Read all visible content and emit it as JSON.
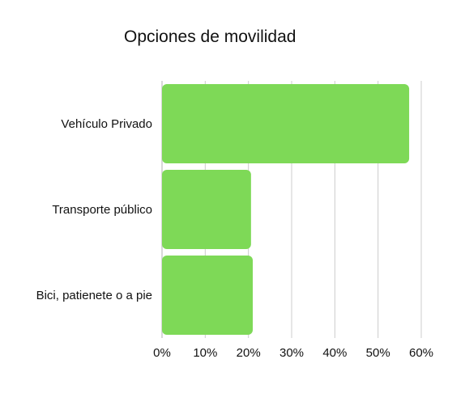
{
  "chart_data": {
    "type": "bar",
    "orientation": "horizontal",
    "title": "Opciones de movilidad",
    "categories": [
      "Vehículo Privado",
      "Transporte público",
      "Bici, patienete o a pie"
    ],
    "values": [
      57.2,
      20.6,
      21.0
    ],
    "x_ticks": [
      "0%",
      "10%",
      "20%",
      "30%",
      "40%",
      "50%",
      "60%"
    ],
    "xlim": [
      0,
      60
    ],
    "grid": true,
    "bar_color": "#7ed957",
    "grid_color": "#cccccc"
  }
}
